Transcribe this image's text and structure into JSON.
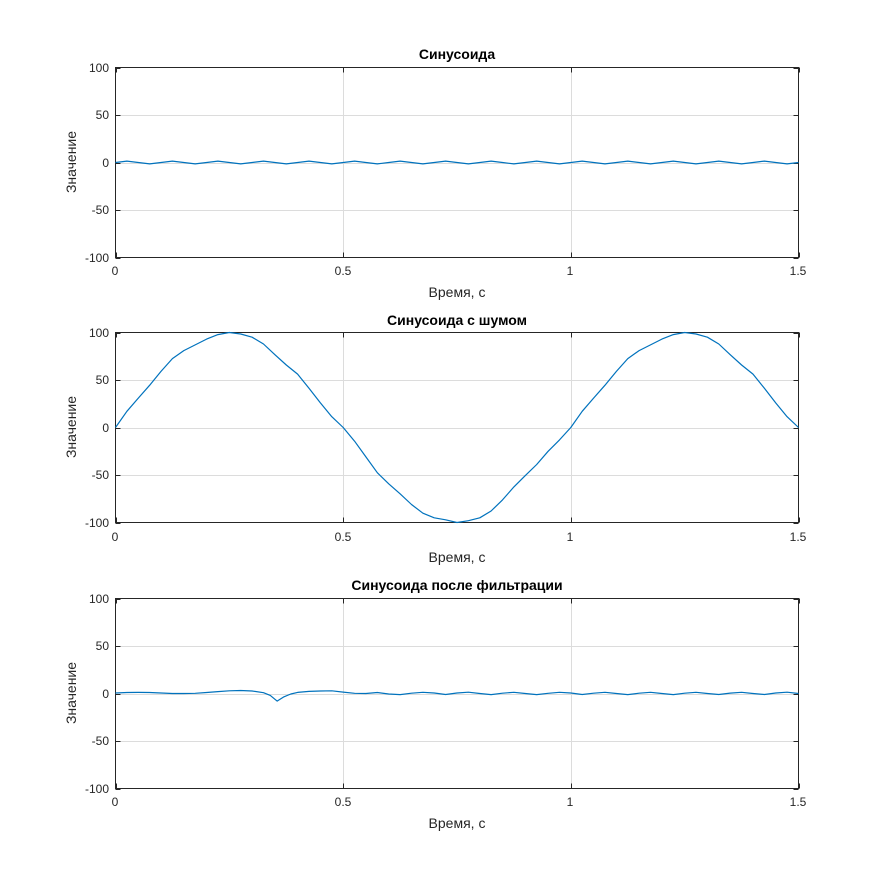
{
  "figure": {
    "line_color": "#0072bd",
    "grid_color": "#dcdcdc",
    "axis_color": "#262626"
  },
  "chart_data": [
    {
      "type": "line",
      "title": "Синусоида",
      "xlabel": "Время, с",
      "ylabel": "Значение",
      "xlim": [
        0,
        1.5
      ],
      "ylim": [
        -100,
        100
      ],
      "xticks": [
        0,
        0.5,
        1,
        1.5
      ],
      "xtick_labels": [
        "0",
        "0.5",
        "1",
        "1.5"
      ],
      "yticks": [
        100,
        50,
        0,
        -50,
        -100
      ],
      "ytick_labels": [
        "100",
        "50",
        "0",
        "-50",
        "-100"
      ],
      "grid": true,
      "series": [
        {
          "x": [
            0,
            0.025,
            0.05,
            0.075,
            0.1,
            0.125,
            0.15,
            0.175,
            0.2,
            0.225,
            0.25,
            0.275,
            0.3,
            0.325,
            0.35,
            0.375,
            0.4,
            0.425,
            0.45,
            0.475,
            0.5,
            0.525,
            0.55,
            0.575,
            0.6,
            0.625,
            0.65,
            0.675,
            0.7,
            0.725,
            0.75,
            0.775,
            0.8,
            0.825,
            0.85,
            0.875,
            0.9,
            0.925,
            0.95,
            0.975,
            1,
            1.025,
            1.05,
            1.075,
            1.1,
            1.125,
            1.15,
            1.175,
            1.2,
            1.225,
            1.25,
            1.275,
            1.3,
            1.325,
            1.35,
            1.375,
            1.4,
            1.425,
            1.45,
            1.475,
            1.5
          ],
          "y": [
            0,
            1.5,
            0,
            -1.5,
            0,
            1.5,
            0,
            -1.5,
            0,
            1.5,
            0,
            -1.5,
            0,
            1.5,
            0,
            -1.5,
            0,
            1.5,
            0,
            -1.5,
            0,
            1.5,
            0,
            -1.5,
            0,
            1.5,
            0,
            -1.5,
            0,
            1.5,
            0,
            -1.5,
            0,
            1.5,
            0,
            -1.5,
            0,
            1.5,
            0,
            -1.5,
            0,
            1.5,
            0,
            -1.5,
            0,
            1.5,
            0,
            -1.5,
            0,
            1.5,
            0,
            -1.5,
            0,
            1.5,
            0,
            -1.5,
            0,
            1.5,
            0,
            -1.5,
            0
          ]
        }
      ]
    },
    {
      "type": "line",
      "title": "Синусоида с шумом",
      "xlabel": "Время, с",
      "ylabel": "Значение",
      "xlim": [
        0,
        1.5
      ],
      "ylim": [
        -100,
        100
      ],
      "xticks": [
        0,
        0.5,
        1,
        1.5
      ],
      "xtick_labels": [
        "0",
        "0.5",
        "1",
        "1.5"
      ],
      "yticks": [
        100,
        50,
        0,
        -50,
        -100
      ],
      "ytick_labels": [
        "100",
        "50",
        "0",
        "-50",
        "-100"
      ],
      "grid": true,
      "series": [
        {
          "x": [
            0,
            0.025,
            0.05,
            0.075,
            0.1,
            0.125,
            0.15,
            0.175,
            0.2,
            0.225,
            0.25,
            0.275,
            0.3,
            0.325,
            0.35,
            0.375,
            0.4,
            0.425,
            0.45,
            0.475,
            0.5,
            0.525,
            0.55,
            0.575,
            0.6,
            0.625,
            0.65,
            0.675,
            0.7,
            0.725,
            0.75,
            0.775,
            0.8,
            0.825,
            0.85,
            0.875,
            0.9,
            0.925,
            0.95,
            0.975,
            1,
            1.025,
            1.05,
            1.075,
            1.1,
            1.125,
            1.15,
            1.175,
            1.2,
            1.225,
            1.25,
            1.275,
            1.3,
            1.325,
            1.35,
            1.375,
            1.4,
            1.425,
            1.45,
            1.475,
            1.5
          ],
          "y": [
            0,
            17.1,
            30.9,
            44.5,
            59,
            72.5,
            81,
            86.9,
            93,
            97.8,
            100,
            98.4,
            95.1,
            87.9,
            76.6,
            65.8,
            56.2,
            41.3,
            25.9,
            11.4,
            0,
            -14.4,
            -30.9,
            -47.6,
            -59.3,
            -69.8,
            -81,
            -90.2,
            -95.1,
            -97.2,
            -100,
            -98.1,
            -95.1,
            -87.9,
            -76.2,
            -62.5,
            -50.6,
            -39,
            -25,
            -13.1,
            0,
            17.1,
            30.9,
            44.5,
            59,
            72.5,
            81,
            86.9,
            93,
            97.8,
            100,
            98.4,
            95.1,
            87.9,
            76.6,
            65.8,
            56.2,
            41.3,
            25.9,
            11.4,
            0
          ]
        }
      ]
    },
    {
      "type": "line",
      "title": "Синусоида после фильтрации",
      "xlabel": "Время, с",
      "ylabel": "Значение",
      "xlim": [
        0,
        1.5
      ],
      "ylim": [
        -100,
        100
      ],
      "xticks": [
        0,
        0.5,
        1,
        1.5
      ],
      "xtick_labels": [
        "0",
        "0.5",
        "1",
        "1.5"
      ],
      "yticks": [
        100,
        50,
        0,
        -50,
        -100
      ],
      "ytick_labels": [
        "100",
        "50",
        "0",
        "-50",
        "-100"
      ],
      "grid": true,
      "series": [
        {
          "x": [
            0,
            0.025,
            0.05,
            0.075,
            0.1,
            0.125,
            0.15,
            0.175,
            0.2,
            0.225,
            0.25,
            0.275,
            0.3,
            0.325,
            0.34,
            0.355,
            0.37,
            0.385,
            0.4,
            0.425,
            0.45,
            0.475,
            0.5,
            0.525,
            0.55,
            0.575,
            0.6,
            0.625,
            0.65,
            0.675,
            0.7,
            0.725,
            0.75,
            0.775,
            0.8,
            0.825,
            0.85,
            0.875,
            0.9,
            0.925,
            0.95,
            0.975,
            1,
            1.025,
            1.05,
            1.075,
            1.1,
            1.125,
            1.15,
            1.175,
            1.2,
            1.225,
            1.25,
            1.275,
            1.3,
            1.325,
            1.35,
            1.375,
            1.4,
            1.425,
            1.45,
            1.475,
            1.5
          ],
          "y": [
            0.5,
            1,
            1.2,
            1,
            0.5,
            0,
            0,
            0.2,
            1,
            2,
            2.8,
            3.2,
            2.6,
            0.8,
            -2,
            -8,
            -3.5,
            -0.5,
            1.2,
            2.2,
            2.6,
            2.8,
            1.5,
            0.2,
            0,
            1,
            -0.5,
            -1.2,
            0.3,
            1.3,
            0.5,
            -1,
            0.5,
            1.4,
            0,
            -1.2,
            0.3,
            1.3,
            0,
            -1.2,
            0.2,
            1.3,
            0.5,
            -1,
            0.3,
            1.3,
            0,
            -1.2,
            0.3,
            1.3,
            0,
            -1.2,
            0.3,
            1.3,
            0,
            -1,
            0.4,
            1.3,
            0,
            -1,
            0.5,
            1.4,
            0
          ]
        }
      ]
    }
  ]
}
